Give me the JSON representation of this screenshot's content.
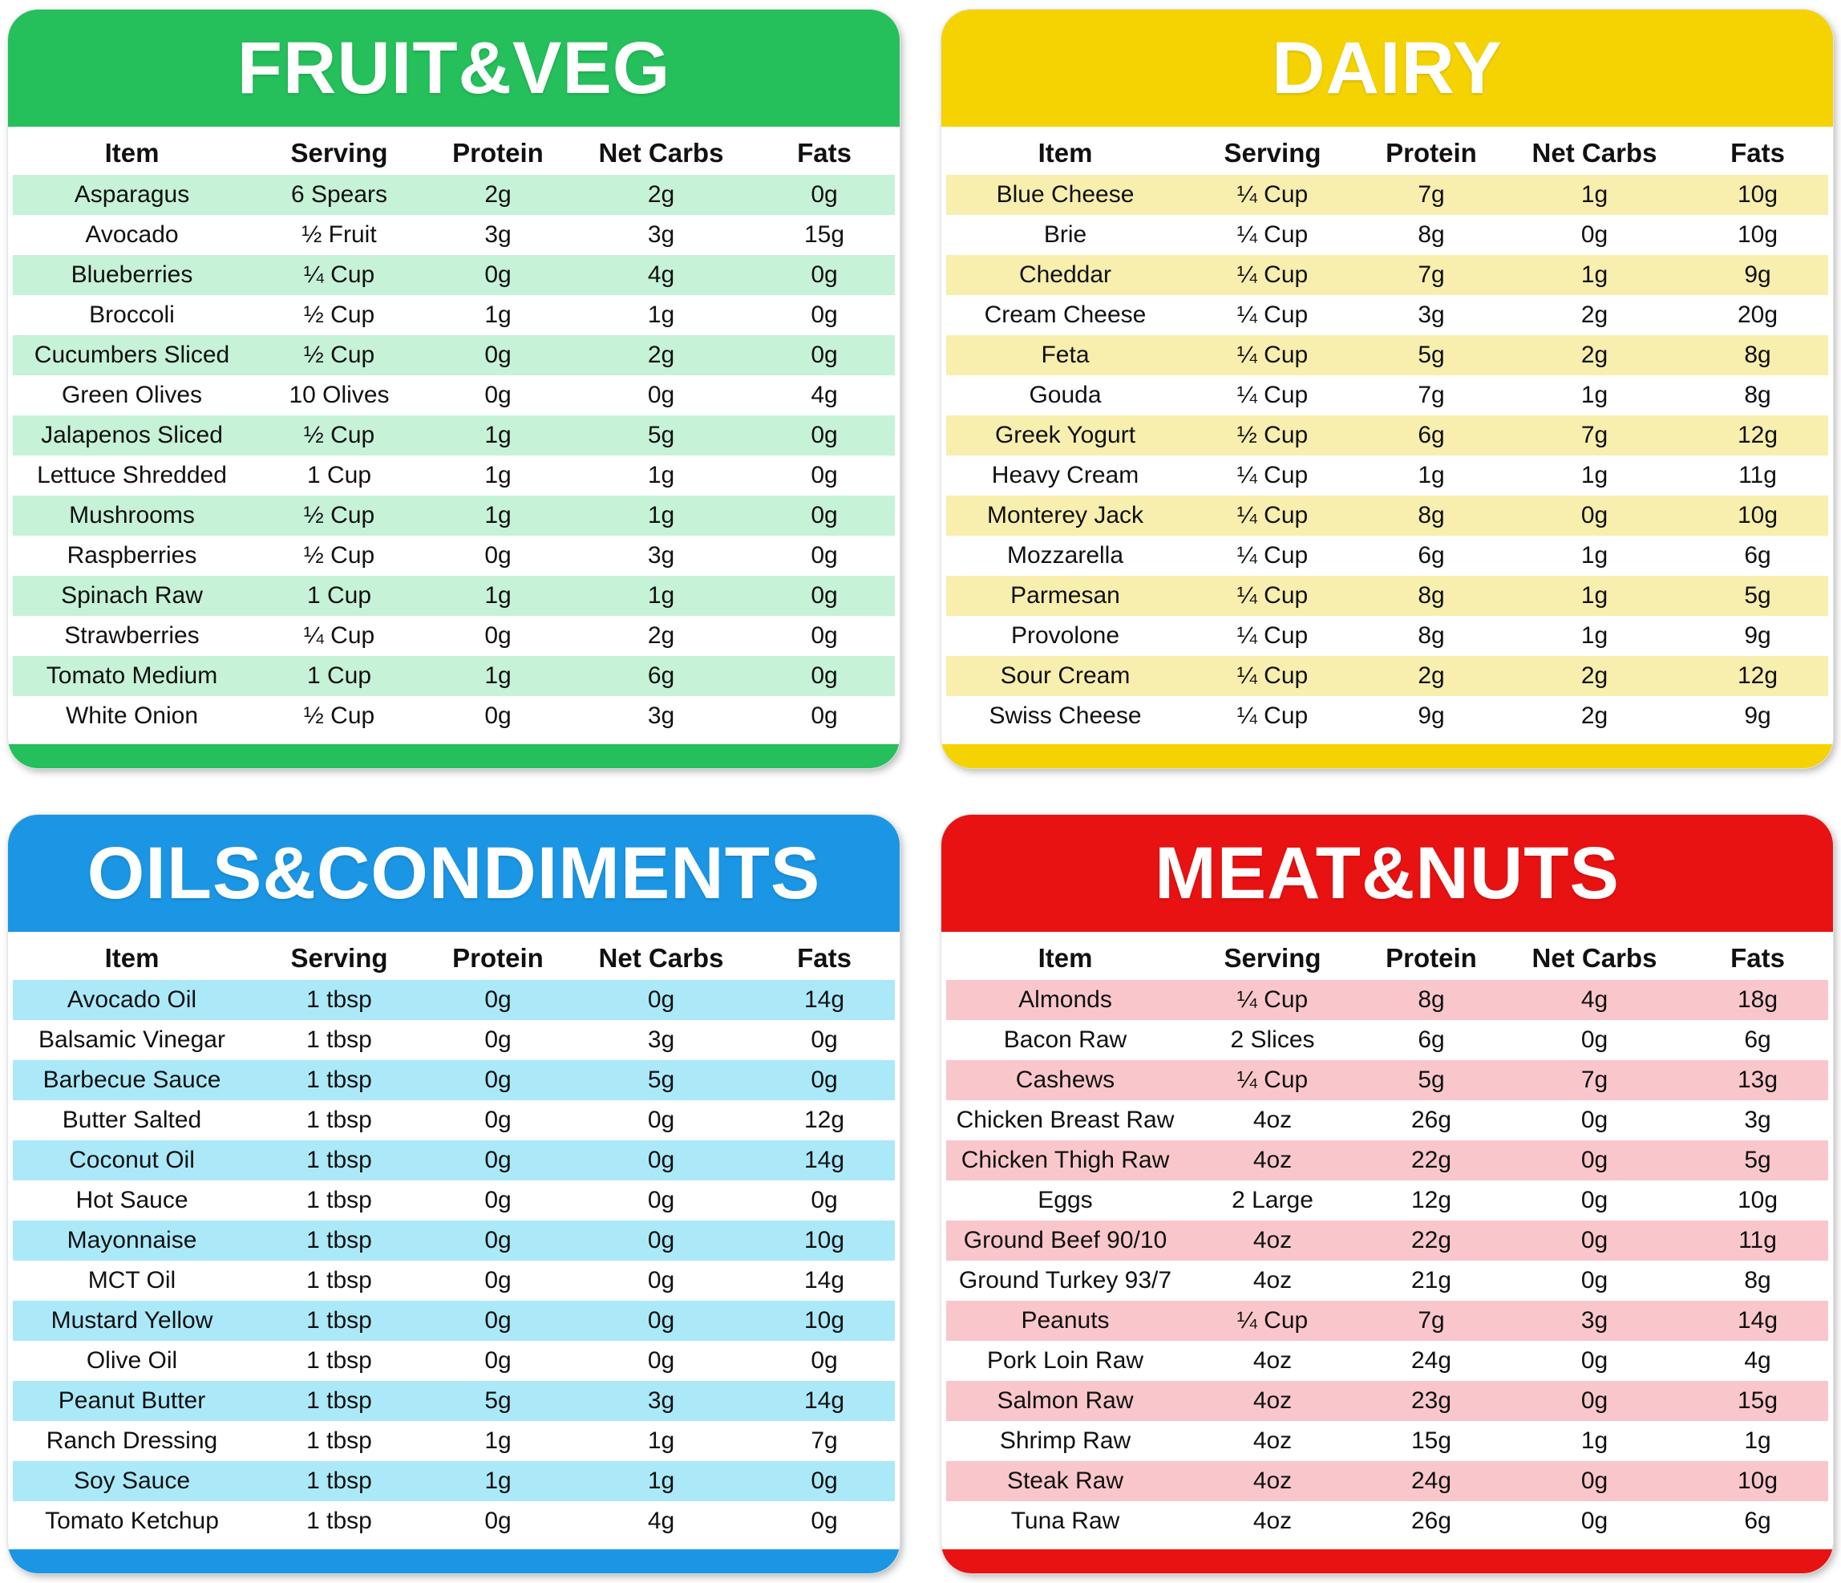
{
  "chart_data": [
    {
      "type": "table",
      "title": "FRUIT&VEG",
      "accent": "#25bf5b",
      "stripe": "#c6f2d8",
      "columns": [
        "Item",
        "Serving",
        "Protein",
        "Net Carbs",
        "Fats"
      ],
      "rows": [
        [
          "Asparagus",
          "6 Spears",
          "2g",
          "2g",
          "0g"
        ],
        [
          "Avocado",
          "½ Fruit",
          "3g",
          "3g",
          "15g"
        ],
        [
          "Blueberries",
          "¼ Cup",
          "0g",
          "4g",
          "0g"
        ],
        [
          "Broccoli",
          "½ Cup",
          "1g",
          "1g",
          "0g"
        ],
        [
          "Cucumbers Sliced",
          "½ Cup",
          "0g",
          "2g",
          "0g"
        ],
        [
          "Green Olives",
          "10 Olives",
          "0g",
          "0g",
          "4g"
        ],
        [
          "Jalapenos Sliced",
          "½ Cup",
          "1g",
          "5g",
          "0g"
        ],
        [
          "Lettuce Shredded",
          "1 Cup",
          "1g",
          "1g",
          "0g"
        ],
        [
          "Mushrooms",
          "½ Cup",
          "1g",
          "1g",
          "0g"
        ],
        [
          "Raspberries",
          "½ Cup",
          "0g",
          "3g",
          "0g"
        ],
        [
          "Spinach Raw",
          "1 Cup",
          "1g",
          "1g",
          "0g"
        ],
        [
          "Strawberries",
          "¼ Cup",
          "0g",
          "2g",
          "0g"
        ],
        [
          "Tomato Medium",
          "1 Cup",
          "1g",
          "6g",
          "0g"
        ],
        [
          "White Onion",
          "½ Cup",
          "0g",
          "3g",
          "0g"
        ]
      ]
    },
    {
      "type": "table",
      "title": "DAIRY",
      "accent": "#f5d303",
      "stripe": "#f8eeae",
      "columns": [
        "Item",
        "Serving",
        "Protein",
        "Net Carbs",
        "Fats"
      ],
      "rows": [
        [
          "Blue Cheese",
          "¼ Cup",
          "7g",
          "1g",
          "10g"
        ],
        [
          "Brie",
          "¼ Cup",
          "8g",
          "0g",
          "10g"
        ],
        [
          "Cheddar",
          "¼ Cup",
          "7g",
          "1g",
          "9g"
        ],
        [
          "Cream Cheese",
          "¼ Cup",
          "3g",
          "2g",
          "20g"
        ],
        [
          "Feta",
          "¼ Cup",
          "5g",
          "2g",
          "8g"
        ],
        [
          "Gouda",
          "¼ Cup",
          "7g",
          "1g",
          "8g"
        ],
        [
          "Greek Yogurt",
          "½ Cup",
          "6g",
          "7g",
          "12g"
        ],
        [
          "Heavy Cream",
          "¼ Cup",
          "1g",
          "1g",
          "11g"
        ],
        [
          "Monterey Jack",
          "¼ Cup",
          "8g",
          "0g",
          "10g"
        ],
        [
          "Mozzarella",
          "¼ Cup",
          "6g",
          "1g",
          "6g"
        ],
        [
          "Parmesan",
          "¼ Cup",
          "8g",
          "1g",
          "5g"
        ],
        [
          "Provolone",
          "¼ Cup",
          "8g",
          "1g",
          "9g"
        ],
        [
          "Sour Cream",
          "¼ Cup",
          "2g",
          "2g",
          "12g"
        ],
        [
          "Swiss Cheese",
          "¼ Cup",
          "9g",
          "2g",
          "9g"
        ]
      ]
    },
    {
      "type": "table",
      "title": "OILS&CONDIMENTS",
      "accent": "#1b96e4",
      "stripe": "#abe9f9",
      "columns": [
        "Item",
        "Serving",
        "Protein",
        "Net Carbs",
        "Fats"
      ],
      "rows": [
        [
          "Avocado Oil",
          "1 tbsp",
          "0g",
          "0g",
          "14g"
        ],
        [
          "Balsamic Vinegar",
          "1 tbsp",
          "0g",
          "3g",
          "0g"
        ],
        [
          "Barbecue Sauce",
          "1 tbsp",
          "0g",
          "5g",
          "0g"
        ],
        [
          "Butter Salted",
          "1 tbsp",
          "0g",
          "0g",
          "12g"
        ],
        [
          "Coconut Oil",
          "1 tbsp",
          "0g",
          "0g",
          "14g"
        ],
        [
          "Hot Sauce",
          "1 tbsp",
          "0g",
          "0g",
          "0g"
        ],
        [
          "Mayonnaise",
          "1 tbsp",
          "0g",
          "0g",
          "10g"
        ],
        [
          "MCT Oil",
          "1 tbsp",
          "0g",
          "0g",
          "14g"
        ],
        [
          "Mustard Yellow",
          "1 tbsp",
          "0g",
          "0g",
          "10g"
        ],
        [
          "Olive Oil",
          "1 tbsp",
          "0g",
          "0g",
          "0g"
        ],
        [
          "Peanut Butter",
          "1 tbsp",
          "5g",
          "3g",
          "14g"
        ],
        [
          "Ranch Dressing",
          "1 tbsp",
          "1g",
          "1g",
          "7g"
        ],
        [
          "Soy Sauce",
          "1 tbsp",
          "1g",
          "1g",
          "0g"
        ],
        [
          "Tomato Ketchup",
          "1 tbsp",
          "0g",
          "4g",
          "0g"
        ]
      ]
    },
    {
      "type": "table",
      "title": "MEAT&NUTS",
      "accent": "#e81212",
      "stripe": "#f9c7cb",
      "columns": [
        "Item",
        "Serving",
        "Protein",
        "Net Carbs",
        "Fats"
      ],
      "rows": [
        [
          "Almonds",
          "¼ Cup",
          "8g",
          "4g",
          "18g"
        ],
        [
          "Bacon Raw",
          "2 Slices",
          "6g",
          "0g",
          "6g"
        ],
        [
          "Cashews",
          "¼ Cup",
          "5g",
          "7g",
          "13g"
        ],
        [
          "Chicken Breast Raw",
          "4oz",
          "26g",
          "0g",
          "3g"
        ],
        [
          "Chicken Thigh Raw",
          "4oz",
          "22g",
          "0g",
          "5g"
        ],
        [
          "Eggs",
          "2 Large",
          "12g",
          "0g",
          "10g"
        ],
        [
          "Ground Beef 90/10",
          "4oz",
          "22g",
          "0g",
          "11g"
        ],
        [
          "Ground Turkey 93/7",
          "4oz",
          "21g",
          "0g",
          "8g"
        ],
        [
          "Peanuts",
          "¼ Cup",
          "7g",
          "3g",
          "14g"
        ],
        [
          "Pork Loin Raw",
          "4oz",
          "24g",
          "0g",
          "4g"
        ],
        [
          "Salmon Raw",
          "4oz",
          "23g",
          "0g",
          "15g"
        ],
        [
          "Shrimp Raw",
          "4oz",
          "15g",
          "1g",
          "1g"
        ],
        [
          "Steak Raw",
          "4oz",
          "24g",
          "0g",
          "10g"
        ],
        [
          "Tuna Raw",
          "4oz",
          "26g",
          "0g",
          "6g"
        ]
      ]
    }
  ]
}
